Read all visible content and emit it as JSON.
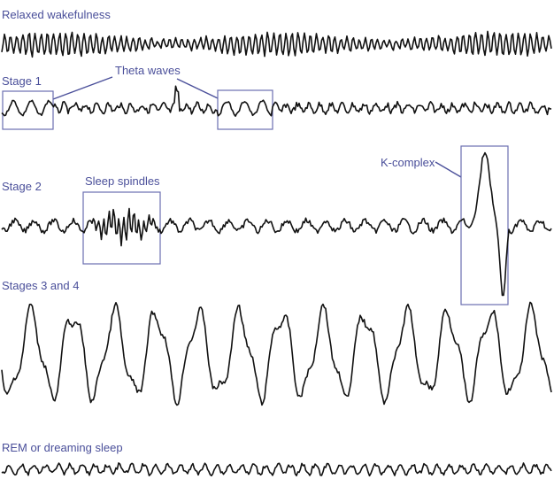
{
  "stages": [
    {
      "label": "Relaxed wakefulness"
    },
    {
      "label": "Stage 1"
    },
    {
      "label": "Stage 2"
    },
    {
      "label": "Stages 3 and 4"
    },
    {
      "label": "REM or dreaming sleep"
    }
  ],
  "annotations": {
    "theta": "Theta waves",
    "spindles": "Sleep spindles",
    "kcomplex": "K-complex"
  },
  "colors": {
    "label": "#4a4f9a",
    "box": "#6a6fb0",
    "trace": "#111111"
  }
}
